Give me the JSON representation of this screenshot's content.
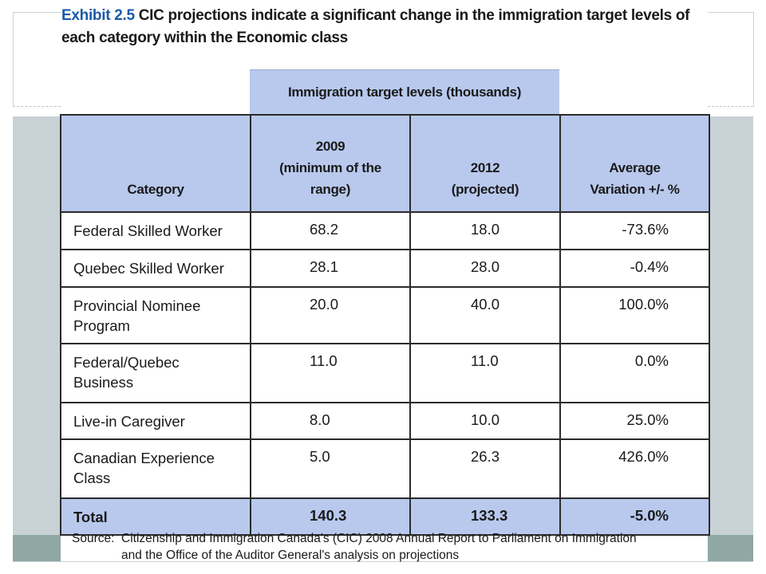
{
  "title": {
    "label": "Exhibit 2.5",
    "text": "CIC projections indicate a significant change in the immigration target levels of each category within the Economic class"
  },
  "group_header": "Immigration target levels (thousands)",
  "columns": {
    "category": "Category",
    "y2009": [
      "2009",
      "(minimum of the",
      "range)"
    ],
    "y2012": [
      "2012",
      "(projected)"
    ],
    "variation": [
      "Average",
      "Variation +/- %"
    ]
  },
  "rows": [
    {
      "category": [
        "Federal Skilled Worker"
      ],
      "y2009": "68.2",
      "y2012": "18.0",
      "variation": "-73.6%"
    },
    {
      "category": [
        "Quebec Skilled Worker"
      ],
      "y2009": "28.1",
      "y2012": "28.0",
      "variation": "-0.4%"
    },
    {
      "category": [
        "Provincial Nominee",
        "Program"
      ],
      "y2009": "20.0",
      "y2012": "40.0",
      "variation": "100.0%"
    },
    {
      "category": [
        "Federal/Quebec",
        "Business"
      ],
      "y2009": "11.0",
      "y2012": "11.0",
      "variation": "0.0%"
    },
    {
      "category": [
        "Live-in Caregiver"
      ],
      "y2009": "8.0",
      "y2012": "10.0",
      "variation": "25.0%"
    },
    {
      "category": [
        "Canadian Experience",
        "Class"
      ],
      "y2009": "5.0",
      "y2012": "26.3",
      "variation": "426.0%"
    }
  ],
  "total": {
    "category": "Total",
    "y2009": "140.3",
    "y2012": "133.3",
    "variation": "-5.0%"
  },
  "source": {
    "label": "Source:",
    "lines": [
      "Citizenship and Immigration Canada's (CIC) 2008 Annual Report to Parliament on Immigration",
      "and the Office of the Auditor General's analysis on projections"
    ]
  },
  "colors": {
    "accent_header": "#b8c9ed",
    "title_label": "#1a5aa8"
  }
}
